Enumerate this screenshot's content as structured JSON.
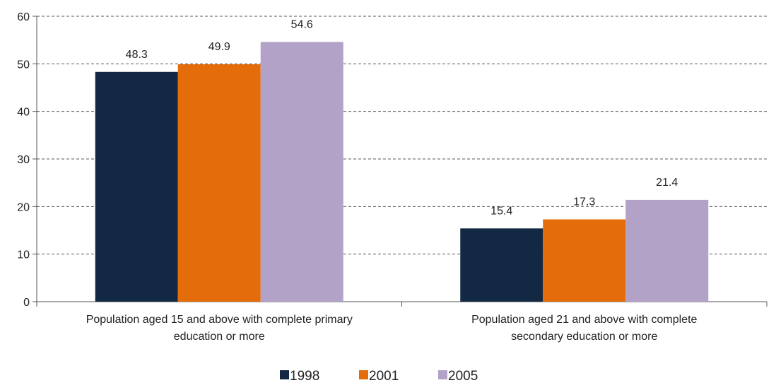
{
  "chart_data": {
    "type": "bar",
    "title": "",
    "xlabel": "",
    "ylabel": "",
    "ylim": [
      0,
      60
    ],
    "yticks": [
      0,
      10,
      20,
      30,
      40,
      50,
      60
    ],
    "grid": true,
    "legend_position": "bottom",
    "categories": [
      [
        "Population aged 15 and above with complete primary",
        "education or more"
      ],
      [
        "Population aged 21 and above with complete",
        "secondary education or more"
      ]
    ],
    "series": [
      {
        "name": "1998",
        "color": "#132843",
        "values": [
          48.3,
          15.4
        ]
      },
      {
        "name": "2001",
        "color": "#E46C0A",
        "values": [
          49.9,
          17.3
        ]
      },
      {
        "name": "2005",
        "color": "#B3A2C7",
        "values": [
          54.6,
          21.4
        ]
      }
    ]
  }
}
